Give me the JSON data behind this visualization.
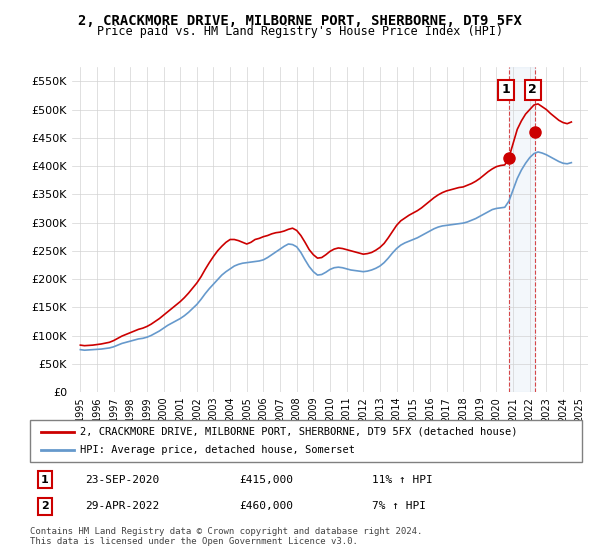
{
  "title": "2, CRACKMORE DRIVE, MILBORNE PORT, SHERBORNE, DT9 5FX",
  "subtitle": "Price paid vs. HM Land Registry's House Price Index (HPI)",
  "legend_line1": "2, CRACKMORE DRIVE, MILBORNE PORT, SHERBORNE, DT9 5FX (detached house)",
  "legend_line2": "HPI: Average price, detached house, Somerset",
  "annotation1_label": "1",
  "annotation1_date": "23-SEP-2020",
  "annotation1_price": "£415,000",
  "annotation1_hpi": "11% ↑ HPI",
  "annotation2_label": "2",
  "annotation2_date": "29-APR-2022",
  "annotation2_price": "£460,000",
  "annotation2_hpi": "7% ↑ HPI",
  "footnote": "Contains HM Land Registry data © Crown copyright and database right 2024.\nThis data is licensed under the Open Government Licence v3.0.",
  "red_color": "#cc0000",
  "blue_color": "#6699cc",
  "sale1_x": 2020.73,
  "sale1_y": 415000,
  "sale2_x": 2022.33,
  "sale2_y": 460000,
  "ylim": [
    0,
    575000
  ],
  "xlim": [
    1994.5,
    2025.5
  ],
  "yticks": [
    0,
    50000,
    100000,
    150000,
    200000,
    250000,
    300000,
    350000,
    400000,
    450000,
    500000,
    550000
  ],
  "ytick_labels": [
    "£0",
    "£50K",
    "£100K",
    "£150K",
    "£200K",
    "£250K",
    "£300K",
    "£350K",
    "£400K",
    "£450K",
    "£500K",
    "£550K"
  ],
  "hpi_data_x": [
    1995,
    1995.25,
    1995.5,
    1995.75,
    1996,
    1996.25,
    1996.5,
    1996.75,
    1997,
    1997.25,
    1997.5,
    1997.75,
    1998,
    1998.25,
    1998.5,
    1998.75,
    1999,
    1999.25,
    1999.5,
    1999.75,
    2000,
    2000.25,
    2000.5,
    2000.75,
    2001,
    2001.25,
    2001.5,
    2001.75,
    2002,
    2002.25,
    2002.5,
    2002.75,
    2003,
    2003.25,
    2003.5,
    2003.75,
    2004,
    2004.25,
    2004.5,
    2004.75,
    2005,
    2005.25,
    2005.5,
    2005.75,
    2006,
    2006.25,
    2006.5,
    2006.75,
    2007,
    2007.25,
    2007.5,
    2007.75,
    2008,
    2008.25,
    2008.5,
    2008.75,
    2009,
    2009.25,
    2009.5,
    2009.75,
    2010,
    2010.25,
    2010.5,
    2010.75,
    2011,
    2011.25,
    2011.5,
    2011.75,
    2012,
    2012.25,
    2012.5,
    2012.75,
    2013,
    2013.25,
    2013.5,
    2013.75,
    2014,
    2014.25,
    2014.5,
    2014.75,
    2015,
    2015.25,
    2015.5,
    2015.75,
    2016,
    2016.25,
    2016.5,
    2016.75,
    2017,
    2017.25,
    2017.5,
    2017.75,
    2018,
    2018.25,
    2018.5,
    2018.75,
    2019,
    2019.25,
    2019.5,
    2019.75,
    2020,
    2020.25,
    2020.5,
    2020.75,
    2021,
    2021.25,
    2021.5,
    2021.75,
    2022,
    2022.25,
    2022.5,
    2022.75,
    2023,
    2023.25,
    2023.5,
    2023.75,
    2024,
    2024.25,
    2024.5
  ],
  "hpi_data_y": [
    75000,
    74000,
    74500,
    75000,
    75500,
    76000,
    77000,
    78000,
    80000,
    83000,
    86000,
    88000,
    90000,
    92000,
    94000,
    95000,
    97000,
    100000,
    104000,
    108000,
    113000,
    118000,
    122000,
    126000,
    130000,
    135000,
    141000,
    148000,
    155000,
    164000,
    174000,
    183000,
    191000,
    199000,
    207000,
    213000,
    218000,
    223000,
    226000,
    228000,
    229000,
    230000,
    231000,
    232000,
    234000,
    238000,
    243000,
    248000,
    253000,
    258000,
    262000,
    261000,
    257000,
    247000,
    234000,
    222000,
    213000,
    207000,
    208000,
    212000,
    217000,
    220000,
    221000,
    220000,
    218000,
    216000,
    215000,
    214000,
    213000,
    214000,
    216000,
    219000,
    223000,
    229000,
    237000,
    246000,
    254000,
    260000,
    264000,
    267000,
    270000,
    273000,
    277000,
    281000,
    285000,
    289000,
    292000,
    294000,
    295000,
    296000,
    297000,
    298000,
    299000,
    301000,
    304000,
    307000,
    311000,
    315000,
    319000,
    323000,
    325000,
    326000,
    327000,
    338000,
    358000,
    378000,
    393000,
    405000,
    415000,
    422000,
    425000,
    423000,
    420000,
    416000,
    412000,
    408000,
    405000,
    404000,
    406000
  ],
  "red_data_x": [
    1995,
    1995.25,
    1995.5,
    1995.75,
    1996,
    1996.25,
    1996.5,
    1996.75,
    1997,
    1997.25,
    1997.5,
    1997.75,
    1998,
    1998.25,
    1998.5,
    1998.75,
    1999,
    1999.25,
    1999.5,
    1999.75,
    2000,
    2000.25,
    2000.5,
    2000.75,
    2001,
    2001.25,
    2001.5,
    2001.75,
    2002,
    2002.25,
    2002.5,
    2002.75,
    2003,
    2003.25,
    2003.5,
    2003.75,
    2004,
    2004.25,
    2004.5,
    2004.75,
    2005,
    2005.25,
    2005.5,
    2005.75,
    2006,
    2006.25,
    2006.5,
    2006.75,
    2007,
    2007.25,
    2007.5,
    2007.75,
    2008,
    2008.25,
    2008.5,
    2008.75,
    2009,
    2009.25,
    2009.5,
    2009.75,
    2010,
    2010.25,
    2010.5,
    2010.75,
    2011,
    2011.25,
    2011.5,
    2011.75,
    2012,
    2012.25,
    2012.5,
    2012.75,
    2013,
    2013.25,
    2013.5,
    2013.75,
    2014,
    2014.25,
    2014.5,
    2014.75,
    2015,
    2015.25,
    2015.5,
    2015.75,
    2016,
    2016.25,
    2016.5,
    2016.75,
    2017,
    2017.25,
    2017.5,
    2017.75,
    2018,
    2018.25,
    2018.5,
    2018.75,
    2019,
    2019.25,
    2019.5,
    2019.75,
    2020,
    2020.25,
    2020.5,
    2020.75,
    2021,
    2021.25,
    2021.5,
    2021.75,
    2022,
    2022.25,
    2022.5,
    2022.75,
    2023,
    2023.25,
    2023.5,
    2023.75,
    2024,
    2024.25,
    2024.5
  ],
  "red_data_y": [
    83000,
    82000,
    82500,
    83000,
    84000,
    85000,
    86500,
    88000,
    91000,
    95000,
    99000,
    102000,
    105000,
    108000,
    111000,
    113000,
    116000,
    120000,
    125000,
    130000,
    136000,
    142000,
    148000,
    154000,
    160000,
    167000,
    175000,
    184000,
    193000,
    204000,
    217000,
    229000,
    240000,
    250000,
    258000,
    265000,
    270000,
    270000,
    268000,
    265000,
    262000,
    265000,
    270000,
    272000,
    275000,
    277000,
    280000,
    282000,
    283000,
    285000,
    288000,
    290000,
    286000,
    277000,
    265000,
    252000,
    243000,
    237000,
    238000,
    243000,
    249000,
    253000,
    255000,
    254000,
    252000,
    250000,
    248000,
    246000,
    244000,
    245000,
    247000,
    251000,
    256000,
    263000,
    273000,
    284000,
    295000,
    303000,
    308000,
    313000,
    317000,
    321000,
    326000,
    332000,
    338000,
    344000,
    349000,
    353000,
    356000,
    358000,
    360000,
    362000,
    363000,
    366000,
    369000,
    373000,
    378000,
    384000,
    390000,
    395000,
    399000,
    401000,
    402000,
    415000,
    440000,
    465000,
    480000,
    492000,
    500000,
    508000,
    510000,
    505000,
    500000,
    493000,
    487000,
    481000,
    477000,
    475000,
    478000
  ]
}
